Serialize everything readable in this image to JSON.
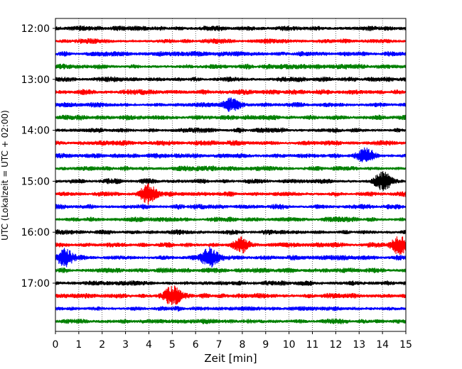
{
  "chart_data": {
    "type": "line",
    "title": "",
    "xlabel": "Zeit  [min]",
    "ylabel": "UTC (Lokalzeit = UTC + 02:00)",
    "xlim": [
      0,
      15
    ],
    "xticks": [
      0,
      1,
      2,
      3,
      4,
      5,
      6,
      7,
      8,
      9,
      10,
      11,
      12,
      13,
      14,
      15
    ],
    "xtick_labels": [
      "0",
      "1",
      "2",
      "3",
      "4",
      "5",
      "6",
      "7",
      "8",
      "9",
      "10",
      "11",
      "12",
      "13",
      "14",
      "15"
    ],
    "y_tick_labels": [
      "12:00",
      "13:00",
      "14:00",
      "15:00",
      "16:00",
      "17:00"
    ],
    "trace_interval_min": 15,
    "first_trace": "12:00",
    "trace_count": 24,
    "trace_color_cycle": [
      "#000000",
      "#ff0000",
      "#0000ff",
      "#008000"
    ],
    "grid": "vertical dotted lines at each minute",
    "bursts": [
      {
        "trace": 12,
        "t_min": 14.0,
        "amplitude": 1.6
      },
      {
        "trace": 13,
        "t_min": 4.0,
        "amplitude": 1.6
      },
      {
        "trace": 17,
        "t_min": 14.7,
        "amplitude": 1.6
      },
      {
        "trace": 17,
        "t_min": 8.0,
        "amplitude": 1.2
      },
      {
        "trace": 18,
        "t_min": 6.6,
        "amplitude": 1.8
      },
      {
        "trace": 18,
        "t_min": 0.4,
        "amplitude": 1.4
      },
      {
        "trace": 21,
        "t_min": 5.0,
        "amplitude": 1.7
      },
      {
        "trace": 6,
        "t_min": 7.5,
        "amplitude": 1.1
      },
      {
        "trace": 10,
        "t_min": 13.3,
        "amplitude": 1.2
      }
    ]
  }
}
